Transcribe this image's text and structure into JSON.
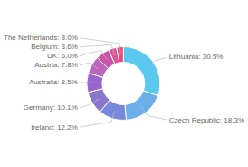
{
  "chart_data": {
    "type": "donut",
    "values": [
      30.5,
      18.3,
      12.2,
      10.1,
      8.5,
      7.8,
      6.0,
      3.6,
      3.0
    ],
    "value_labels": [
      "Lithuania: 30.5%",
      "Czech Republic: 18.3%",
      "Ireland: 12.2%",
      "Germany: 10.1%",
      "Australia: 8.5%",
      "Austria: 7.8%",
      "UK: 6.0%",
      "Belgium: 3.6%",
      "The Netherlands: 3.0%"
    ],
    "colors": [
      "#5bc8f0",
      "#6baee8",
      "#7788dd",
      "#8877cc",
      "#9966cc",
      "#bb66bb",
      "#cc55aa",
      "#dd5599",
      "#ee4477"
    ],
    "data_labels": true
  }
}
